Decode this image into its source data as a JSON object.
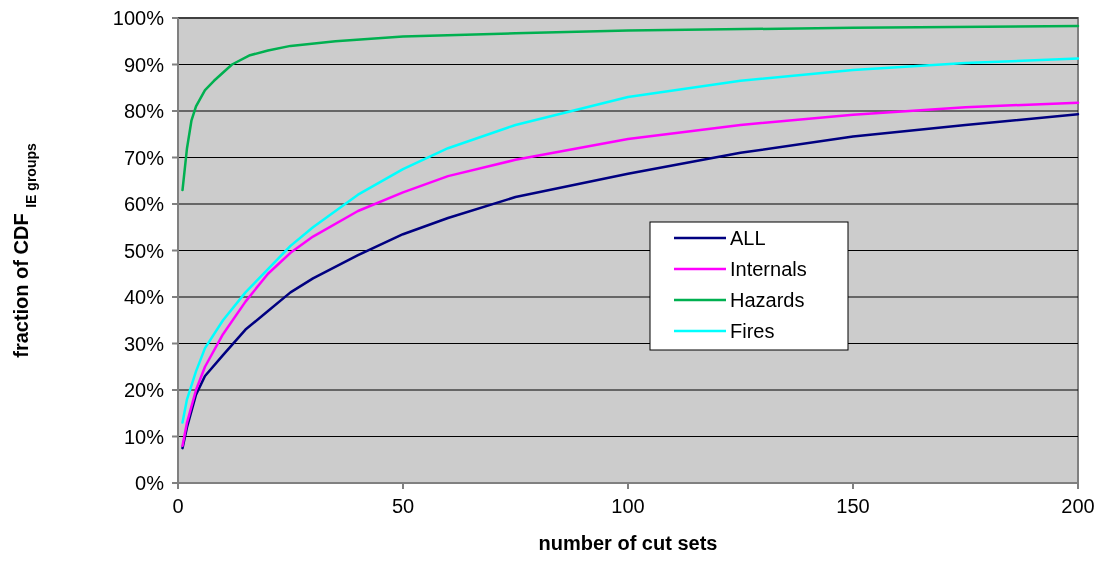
{
  "chart_data": {
    "type": "line",
    "xlabel": "number of cut sets",
    "ylabel": "fraction of CDF $_{IE groups}$",
    "xlim": [
      0,
      200
    ],
    "xticks": [
      0,
      50,
      100,
      150,
      200
    ],
    "ylim": [
      0,
      100
    ],
    "yticks": [
      {
        "value": 0,
        "label": "0%"
      },
      {
        "value": 10,
        "label": "10%"
      },
      {
        "value": 20,
        "label": "20%"
      },
      {
        "value": 30,
        "label": "30%"
      },
      {
        "value": 40,
        "label": "40%"
      },
      {
        "value": 50,
        "label": "50%"
      },
      {
        "value": 60,
        "label": "60%"
      },
      {
        "value": 70,
        "label": "70%"
      },
      {
        "value": 80,
        "label": "80%"
      },
      {
        "value": 90,
        "label": "90%"
      },
      {
        "value": 100,
        "label": "100%"
      }
    ],
    "grid": "y",
    "legend": "right",
    "marker": "none",
    "line_style": "solid",
    "series": [
      {
        "name": "ALL",
        "color": "#000080",
        "x": [
          1,
          2,
          4,
          6,
          10,
          15,
          20,
          25,
          30,
          40,
          50,
          60,
          75,
          100,
          125,
          150,
          175,
          200
        ],
        "values": [
          7.5,
          12,
          19,
          23,
          27.5,
          33,
          37,
          41,
          44,
          49,
          53.5,
          57,
          61.5,
          66.5,
          71,
          74.5,
          77,
          79.3
        ]
      },
      {
        "name": "Internals",
        "color": "#ff00ff",
        "x": [
          1,
          2,
          4,
          6,
          10,
          15,
          20,
          25,
          30,
          40,
          50,
          60,
          75,
          100,
          125,
          150,
          175,
          200
        ],
        "values": [
          8,
          13,
          20,
          25,
          32,
          39,
          45,
          49.5,
          53,
          58.5,
          62.5,
          66,
          69.5,
          74,
          77,
          79.2,
          80.8,
          81.8
        ]
      },
      {
        "name": "Hazards",
        "color": "#00b050",
        "x": [
          1,
          2,
          3,
          4,
          6,
          8,
          12,
          16,
          20,
          25,
          35,
          50,
          75,
          100,
          150,
          200
        ],
        "values": [
          63,
          72,
          78,
          81,
          84.5,
          86.5,
          90,
          92,
          93,
          94,
          95,
          96,
          96.7,
          97.3,
          97.9,
          98.3
        ]
      },
      {
        "name": "Fires",
        "color": "#00ffff",
        "x": [
          1,
          2,
          4,
          6,
          10,
          15,
          20,
          25,
          30,
          40,
          50,
          60,
          75,
          100,
          125,
          150,
          175,
          200
        ],
        "values": [
          13,
          18,
          24,
          29,
          35,
          41,
          46,
          51,
          55,
          62,
          67.5,
          72,
          77,
          83,
          86.5,
          88.8,
          90.3,
          91.3
        ]
      }
    ]
  }
}
